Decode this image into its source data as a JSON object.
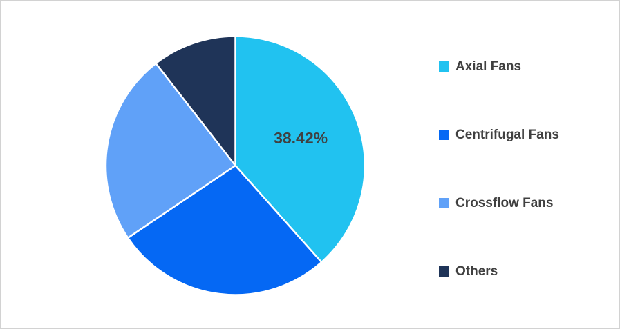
{
  "chart_data": {
    "type": "pie",
    "title": "",
    "legend_position": "right",
    "start_angle_deg": 0,
    "direction": "clockwise",
    "slices": [
      {
        "label": "Axial Fans",
        "value": 38.42,
        "color": "#21C2F0",
        "data_label": "38.42%"
      },
      {
        "label": "Centrifugal Fans",
        "value": 27.14,
        "color": "#0568F4",
        "data_label": ""
      },
      {
        "label": "Crossflow Fans",
        "value": 23.94,
        "color": "#60A1F8",
        "data_label": ""
      },
      {
        "label": "Others",
        "value": 10.5,
        "color": "#1F3458",
        "data_label": ""
      }
    ],
    "labeled_slice_index": 0,
    "notes": "Only the first slice shows a data label (38.42%); remaining slice values estimated from arc angles."
  },
  "colors": {
    "background": "#FFFFFF",
    "frame_border": "#D2D2D2",
    "text": "#404040",
    "separator": "#FFFFFF"
  }
}
